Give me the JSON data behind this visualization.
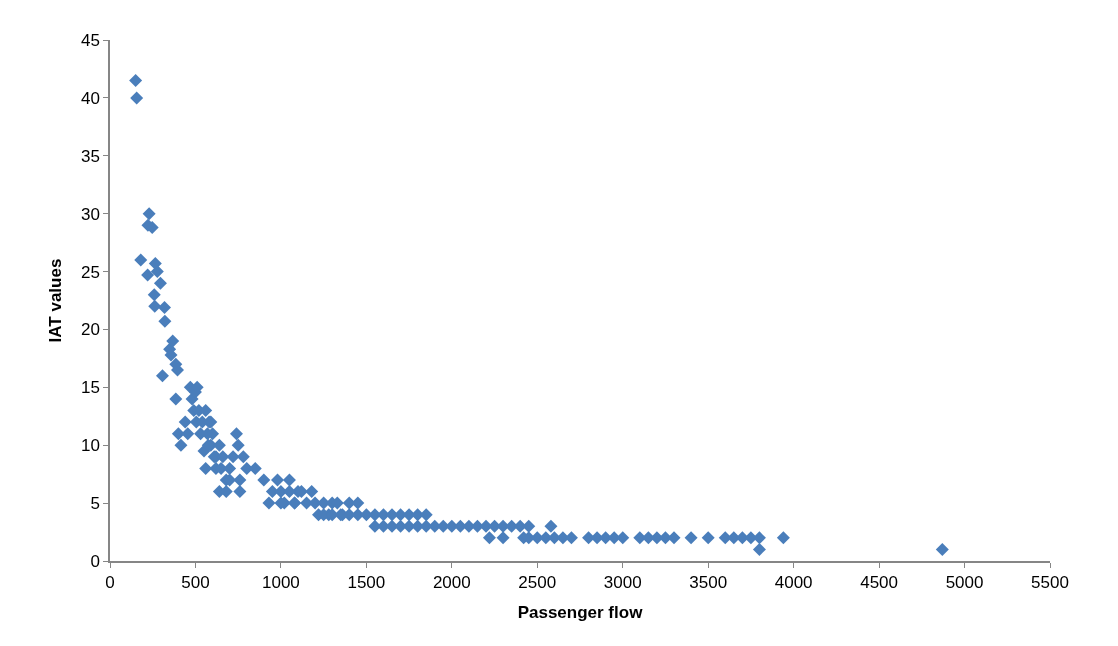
{
  "chart_data": {
    "type": "scatter",
    "xlabel": "Passenger flow",
    "ylabel": "IAT values",
    "marker": "diamond",
    "grid": false,
    "xlim": [
      0,
      5500
    ],
    "xticks": [
      0,
      500,
      1000,
      1500,
      2000,
      2500,
      3000,
      3500,
      4000,
      4500,
      5000,
      5500
    ],
    "ylim": [
      0,
      45
    ],
    "yticks": [
      0,
      5,
      10,
      15,
      20,
      25,
      30,
      35,
      40,
      45
    ],
    "series": [
      {
        "color": "#4a7ebb",
        "x": [
          150,
          156,
          180,
          229,
          222,
          247,
          220,
          265,
          277,
          259,
          262,
          295,
          319,
          321,
          349,
          367,
          357,
          307,
          385,
          395,
          385,
          415,
          400,
          440,
          455,
          470,
          480,
          490,
          500,
          505,
          520,
          530,
          510,
          540,
          550,
          560,
          570,
          580,
          590,
          600,
          610,
          620,
          560,
          575,
          590,
          620,
          640,
          650,
          660,
          680,
          700,
          720,
          740,
          750,
          760,
          780,
          800,
          640,
          680,
          700,
          760,
          850,
          900,
          930,
          950,
          980,
          1000,
          1020,
          1050,
          1080,
          1100,
          1120,
          1150,
          1180,
          1000,
          1050,
          1080,
          1200,
          1220,
          1250,
          1280,
          1300,
          1330,
          1360,
          1400,
          1450,
          1250,
          1300,
          1350,
          1400,
          1450,
          1500,
          1550,
          1600,
          1650,
          1700,
          1750,
          1800,
          1850,
          1550,
          1600,
          1650,
          1700,
          1750,
          1800,
          1850,
          1900,
          1950,
          2000,
          2050,
          2100,
          2150,
          2200,
          2250,
          2300,
          2350,
          2400,
          2450,
          2220,
          2300,
          2420,
          2450,
          2500,
          2550,
          2580,
          2600,
          2650,
          2700,
          2800,
          2850,
          2900,
          2950,
          3000,
          3100,
          3150,
          3200,
          3250,
          3300,
          3400,
          3500,
          3600,
          3650,
          3700,
          3750,
          3800,
          3940,
          3800,
          4870
        ],
        "values": [
          41.5,
          40,
          26,
          30,
          29,
          28.8,
          24.7,
          25.7,
          25,
          23,
          22,
          24,
          21.9,
          20.7,
          18.3,
          19,
          17.8,
          16,
          17,
          16.5,
          14,
          10,
          11,
          12,
          11,
          15,
          14,
          13,
          14.6,
          12,
          13,
          11,
          15,
          12,
          9.5,
          13,
          11,
          12,
          10,
          11,
          9,
          8,
          8,
          10,
          12,
          9,
          10,
          8,
          9,
          7,
          8,
          9,
          11,
          10,
          6,
          9,
          8,
          6,
          6,
          7,
          7,
          8,
          7,
          5,
          6,
          7,
          6,
          5,
          7,
          5,
          6,
          6,
          5,
          6,
          5,
          6,
          5,
          5,
          4,
          5,
          4,
          5,
          5,
          4,
          5,
          5,
          4,
          4,
          4,
          4,
          4,
          4,
          4,
          4,
          4,
          4,
          4,
          4,
          4,
          3,
          3,
          3,
          3,
          3,
          3,
          3,
          3,
          3,
          3,
          3,
          3,
          3,
          3,
          3,
          3,
          3,
          3,
          3,
          2,
          2,
          2,
          2,
          2,
          2,
          3,
          2,
          2,
          2,
          2,
          2,
          2,
          2,
          2,
          2,
          2,
          2,
          2,
          2,
          2,
          2,
          2,
          2,
          2,
          2,
          2,
          2,
          1,
          1
        ]
      }
    ]
  }
}
